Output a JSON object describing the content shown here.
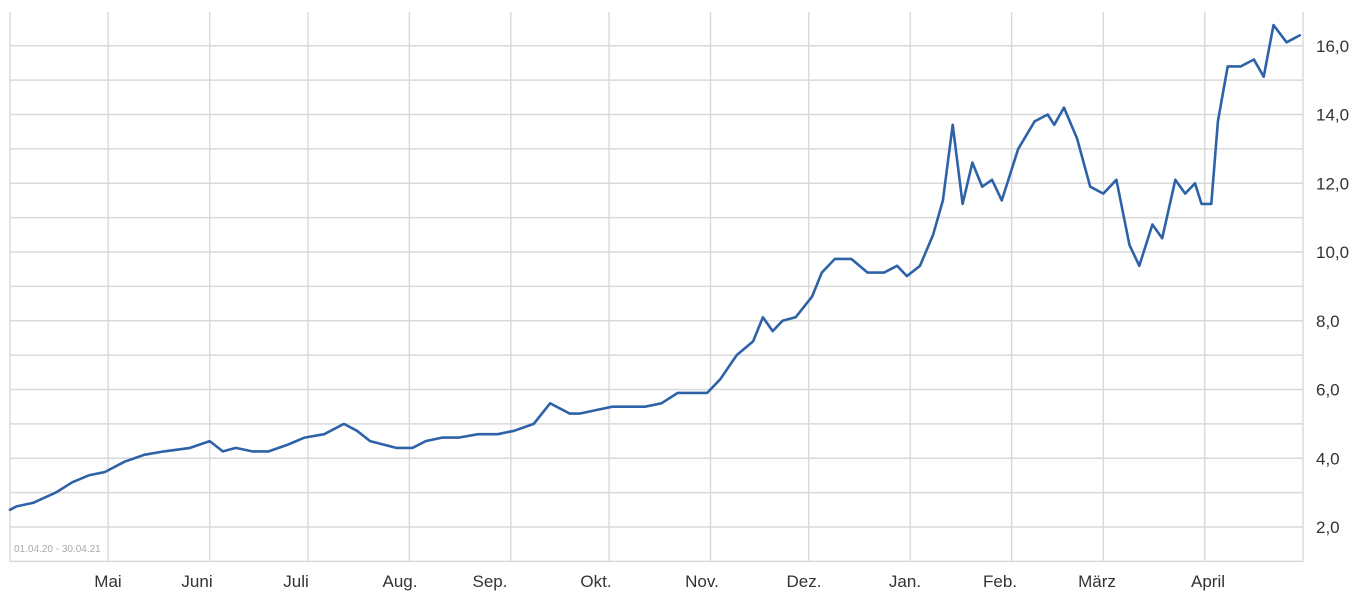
{
  "chart_data": {
    "type": "line",
    "date_range_label": "01.04.20 - 30.04.21",
    "x_tick_labels": [
      "Mai",
      "Juni",
      "Juli",
      "Aug.",
      "Sep.",
      "Okt.",
      "Nov.",
      "Dez.",
      "Jan.",
      "Feb.",
      "März",
      "April"
    ],
    "y_tick_labels": [
      "2,0",
      "4,0",
      "6,0",
      "8,0",
      "10,0",
      "12,0",
      "14,0",
      "16,0"
    ],
    "y_ticks": [
      2,
      4,
      6,
      8,
      10,
      12,
      14,
      16
    ],
    "ylim": [
      1,
      17
    ],
    "grid": true,
    "line_color": "#2e62a8",
    "grid_color": "#d9d9d9",
    "series": [
      {
        "x": [
          "2020-04-01",
          "2020-04-03",
          "2020-04-08",
          "2020-04-15",
          "2020-04-20",
          "2020-04-25",
          "2020-04-30",
          "2020-05-06",
          "2020-05-12",
          "2020-05-18",
          "2020-05-26",
          "2020-06-01",
          "2020-06-05",
          "2020-06-09",
          "2020-06-14",
          "2020-06-19",
          "2020-06-25",
          "2020-06-30",
          "2020-07-06",
          "2020-07-12",
          "2020-07-16",
          "2020-07-20",
          "2020-07-24",
          "2020-07-28",
          "2020-08-02",
          "2020-08-06",
          "2020-08-11",
          "2020-08-16",
          "2020-08-22",
          "2020-08-28",
          "2020-09-02",
          "2020-09-08",
          "2020-09-13",
          "2020-09-19",
          "2020-09-22",
          "2020-09-27",
          "2020-10-02",
          "2020-10-07",
          "2020-10-12",
          "2020-10-17",
          "2020-10-22",
          "2020-10-27",
          "2020-10-31",
          "2020-11-04",
          "2020-11-09",
          "2020-11-14",
          "2020-11-17",
          "2020-11-20",
          "2020-11-23",
          "2020-11-27",
          "2020-12-02",
          "2020-12-05",
          "2020-12-09",
          "2020-12-14",
          "2020-12-19",
          "2020-12-24",
          "2020-12-28",
          "2020-12-31",
          "2021-01-04",
          "2021-01-08",
          "2021-01-11",
          "2021-01-14",
          "2021-01-17",
          "2021-01-20",
          "2021-01-23",
          "2021-01-26",
          "2021-01-29",
          "2021-02-03",
          "2021-02-08",
          "2021-02-12",
          "2021-02-14",
          "2021-02-17",
          "2021-02-21",
          "2021-02-25",
          "2021-03-01",
          "2021-03-05",
          "2021-03-09",
          "2021-03-12",
          "2021-03-16",
          "2021-03-19",
          "2021-03-23",
          "2021-03-26",
          "2021-03-29",
          "2021-03-31",
          "2021-04-03",
          "2021-04-05",
          "2021-04-08",
          "2021-04-12",
          "2021-04-16",
          "2021-04-19",
          "2021-04-22",
          "2021-04-26",
          "2021-04-30"
        ],
        "values": [
          2.5,
          2.6,
          2.7,
          3.0,
          3.3,
          3.5,
          3.6,
          3.9,
          4.1,
          4.2,
          4.3,
          4.5,
          4.2,
          4.3,
          4.2,
          4.2,
          4.4,
          4.6,
          4.7,
          5.0,
          4.8,
          4.5,
          4.4,
          4.3,
          4.3,
          4.5,
          4.6,
          4.6,
          4.7,
          4.7,
          4.8,
          5.0,
          5.6,
          5.3,
          5.3,
          5.4,
          5.5,
          5.5,
          5.5,
          5.6,
          5.9,
          5.9,
          5.9,
          6.3,
          7.0,
          7.4,
          8.1,
          7.7,
          8.0,
          8.1,
          8.7,
          9.4,
          9.8,
          9.8,
          9.4,
          9.4,
          9.6,
          9.3,
          9.6,
          10.5,
          11.5,
          13.7,
          11.4,
          12.6,
          11.9,
          12.1,
          11.5,
          13.0,
          13.8,
          14.0,
          13.7,
          14.2,
          13.3,
          11.9,
          11.7,
          12.1,
          10.2,
          9.6,
          10.8,
          10.4,
          12.1,
          11.7,
          12.0,
          11.4,
          11.4,
          13.8,
          15.4,
          15.4,
          15.6,
          15.1,
          16.6,
          16.1,
          16.3
        ]
      }
    ]
  }
}
